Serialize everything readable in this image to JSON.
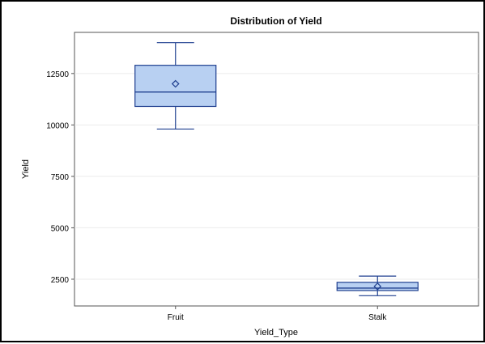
{
  "chart_data": {
    "type": "boxplot",
    "title": "Distribution of Yield",
    "xlabel": "Yield_Type",
    "ylabel": "Yield",
    "categories": [
      "Fruit",
      "Stalk"
    ],
    "y_ticks": [
      2500,
      5000,
      7500,
      10000,
      12500
    ],
    "y_tick_labels": [
      "2500",
      "5000",
      "7500",
      "10000",
      "12500"
    ],
    "ylim": [
      1200,
      14500
    ],
    "grid": true,
    "boxes": [
      {
        "category": "Fruit",
        "min": 9800,
        "q1": 10900,
        "median": 11600,
        "q3": 12900,
        "max": 14000,
        "mean": 12000
      },
      {
        "category": "Stalk",
        "min": 1700,
        "q1": 1950,
        "median": 2070,
        "q3": 2350,
        "max": 2650,
        "mean": 2150
      }
    ],
    "colors": {
      "box_fill": "#b8d0f2",
      "box_line": "#1f3f8f",
      "grid": "#ebebeb",
      "axis": "#555555"
    }
  }
}
